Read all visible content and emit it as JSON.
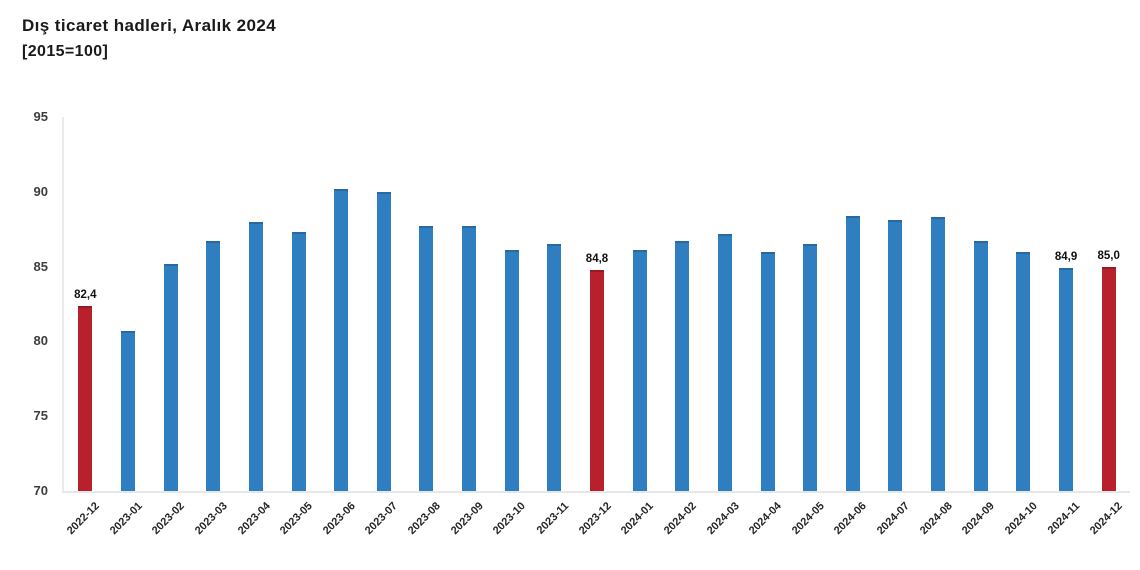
{
  "header": {
    "title": "Dış ticaret hadleri, Aralık 2024",
    "subtitle": "[2015=100]"
  },
  "colors": {
    "bar_default": "#2F7EBF",
    "bar_highlight": "#B8202B",
    "axis_line": "#E9E9E9",
    "tick_text": "#3D3D3D",
    "label_text": "#111111"
  },
  "chart_data": {
    "type": "bar",
    "title": "Dış ticaret hadleri, Aralık 2024",
    "subtitle": "[2015=100]",
    "xlabel": "",
    "ylabel": "",
    "ylim": [
      70,
      95
    ],
    "yticks": [
      70,
      75,
      80,
      85,
      90,
      95
    ],
    "grid": false,
    "legend_position": "none",
    "categories": [
      "2022-12",
      "2023-01",
      "2023-02",
      "2023-03",
      "2023-04",
      "2023-05",
      "2023-06",
      "2023-07",
      "2023-08",
      "2023-09",
      "2023-10",
      "2023-11",
      "2023-12",
      "2024-01",
      "2024-02",
      "2024-03",
      "2024-04",
      "2024-05",
      "2024-06",
      "2024-07",
      "2024-08",
      "2024-09",
      "2024-10",
      "2024-11",
      "2024-12"
    ],
    "values": [
      82.4,
      80.7,
      85.2,
      86.7,
      88.0,
      87.3,
      90.2,
      90.0,
      87.7,
      87.7,
      86.1,
      86.5,
      84.8,
      86.1,
      86.7,
      87.2,
      86.0,
      86.5,
      88.4,
      88.1,
      88.3,
      86.7,
      86.0,
      84.9,
      85.0
    ],
    "highlighted_categories": [
      "2022-12",
      "2023-12",
      "2024-12"
    ],
    "bar_labels": {
      "2022-12": "82,4",
      "2023-12": "84,8",
      "2024-11": "84,9",
      "2024-12": "85,0"
    }
  }
}
